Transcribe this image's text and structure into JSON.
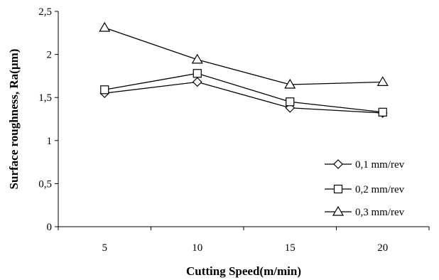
{
  "chart_data": {
    "type": "line",
    "x": [
      5,
      10,
      15,
      20
    ],
    "x_tick_labels": [
      "5",
      "10",
      "15",
      "20"
    ],
    "series": [
      {
        "name": "0,1 mm/rev",
        "marker": "diamond",
        "values": [
          1.55,
          1.68,
          1.38,
          1.32
        ]
      },
      {
        "name": "0,2 mm/rev",
        "marker": "square",
        "values": [
          1.59,
          1.78,
          1.45,
          1.33
        ]
      },
      {
        "name": "0,3 mm/rev",
        "marker": "triangle",
        "values": [
          2.31,
          1.94,
          1.65,
          1.68
        ]
      }
    ],
    "y_ticks": [
      0,
      0.5,
      1,
      1.5,
      2,
      2.5
    ],
    "y_tick_labels": [
      "0",
      "0,5",
      "1",
      "1,5",
      "2",
      "2,5"
    ],
    "ylim": [
      0,
      2.5
    ],
    "xlabel": "Cutting Speed(m/min)",
    "ylabel": "Surface roughness, Ra(µm)",
    "title": "",
    "grid": false,
    "legend_position": "bottom-right",
    "line_color": "#000000",
    "marker_fill": "#ffffff"
  }
}
